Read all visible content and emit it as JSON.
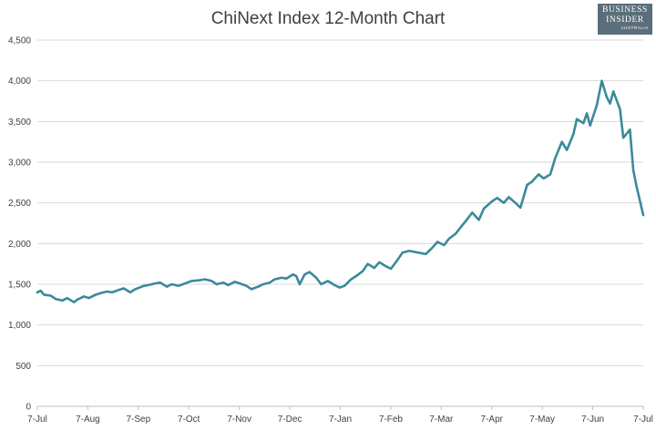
{
  "chart_data": {
    "type": "line",
    "title": "ChiNext Index 12-Month Chart",
    "xlabel": "",
    "ylabel": "",
    "ylim": [
      0,
      4500
    ],
    "yticks": [
      0,
      500,
      1000,
      1500,
      2000,
      2500,
      3000,
      3500,
      4000,
      4500
    ],
    "ytick_labels": [
      "0",
      "500",
      "1,000",
      "1,500",
      "2,000",
      "2,500",
      "3,000",
      "3,500",
      "4,000",
      "4,500"
    ],
    "xticks": [
      "7-Jul",
      "7-Aug",
      "7-Sep",
      "7-Oct",
      "7-Nov",
      "7-Dec",
      "7-Jan",
      "7-Feb",
      "7-Mar",
      "7-Apr",
      "7-May",
      "7-Jun",
      "7-Jul"
    ],
    "grid": "horizontal",
    "legend": "none",
    "color": "#3a8a9a",
    "series": [
      {
        "x": [
          "2014-07-07",
          "2014-07-09",
          "2014-07-11",
          "2014-07-15",
          "2014-07-18",
          "2014-07-22",
          "2014-07-25",
          "2014-07-29",
          "2014-07-31",
          "2014-08-04",
          "2014-08-07",
          "2014-08-11",
          "2014-08-14",
          "2014-08-18",
          "2014-08-21",
          "2014-08-25",
          "2014-08-28",
          "2014-09-01",
          "2014-09-04",
          "2014-09-09",
          "2014-09-12",
          "2014-09-16",
          "2014-09-19",
          "2014-09-23",
          "2014-09-26",
          "2014-09-30",
          "2014-10-08",
          "2014-10-13",
          "2014-10-16",
          "2014-10-20",
          "2014-10-23",
          "2014-10-27",
          "2014-10-30",
          "2014-11-03",
          "2014-11-06",
          "2014-11-10",
          "2014-11-13",
          "2014-11-17",
          "2014-11-20",
          "2014-11-24",
          "2014-11-27",
          "2014-12-01",
          "2014-12-04",
          "2014-12-08",
          "2014-12-10",
          "2014-12-12",
          "2014-12-15",
          "2014-12-18",
          "2014-12-22",
          "2014-12-25",
          "2014-12-29",
          "2015-01-02",
          "2015-01-05",
          "2015-01-08",
          "2015-01-12",
          "2015-01-15",
          "2015-01-19",
          "2015-01-22",
          "2015-01-26",
          "2015-01-29",
          "2015-02-02",
          "2015-02-05",
          "2015-02-09",
          "2015-02-12",
          "2015-02-16",
          "2015-02-26",
          "2015-03-02",
          "2015-03-05",
          "2015-03-09",
          "2015-03-12",
          "2015-03-16",
          "2015-03-19",
          "2015-03-23",
          "2015-03-26",
          "2015-03-30",
          "2015-04-02",
          "2015-04-07",
          "2015-04-10",
          "2015-04-14",
          "2015-04-17",
          "2015-04-21",
          "2015-04-24",
          "2015-04-28",
          "2015-05-01",
          "2015-05-05",
          "2015-05-08",
          "2015-05-12",
          "2015-05-15",
          "2015-05-19",
          "2015-05-22",
          "2015-05-26",
          "2015-05-28",
          "2015-06-01",
          "2015-06-03",
          "2015-06-05",
          "2015-06-09",
          "2015-06-12",
          "2015-06-15",
          "2015-06-17",
          "2015-06-19",
          "2015-06-23",
          "2015-06-25",
          "2015-06-29",
          "2015-07-01",
          "2015-07-03",
          "2015-07-07"
        ],
        "y": [
          1400,
          1420,
          1370,
          1360,
          1320,
          1300,
          1330,
          1280,
          1310,
          1350,
          1330,
          1370,
          1390,
          1410,
          1400,
          1430,
          1450,
          1400,
          1440,
          1480,
          1490,
          1510,
          1520,
          1470,
          1500,
          1480,
          1540,
          1550,
          1560,
          1540,
          1500,
          1520,
          1490,
          1530,
          1510,
          1480,
          1440,
          1470,
          1500,
          1520,
          1560,
          1580,
          1570,
          1620,
          1600,
          1500,
          1620,
          1650,
          1580,
          1500,
          1540,
          1490,
          1460,
          1480,
          1560,
          1600,
          1660,
          1750,
          1700,
          1770,
          1720,
          1690,
          1800,
          1890,
          1910,
          1870,
          1950,
          2020,
          1980,
          2060,
          2120,
          2200,
          2300,
          2380,
          2290,
          2430,
          2520,
          2560,
          2500,
          2570,
          2500,
          2440,
          2720,
          2760,
          2850,
          2800,
          2850,
          3050,
          3250,
          3150,
          3350,
          3530,
          3480,
          3600,
          3450,
          3700,
          4000,
          3800,
          3720,
          3870,
          3650,
          3300,
          3400,
          2900,
          2700,
          2350
        ]
      }
    ]
  },
  "logo": {
    "line1": "BUSINESS",
    "line2": "INSIDER",
    "line3": "AUSTRALIA"
  }
}
